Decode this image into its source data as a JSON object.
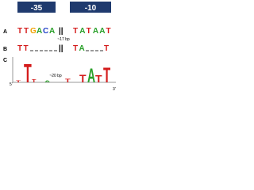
{
  "header": {
    "box1": "-35",
    "box2": "-10"
  },
  "rows": [
    {
      "label": "A",
      "left": [
        "T",
        "T",
        "G",
        "A",
        "C",
        "A"
      ],
      "right": [
        "T",
        "A",
        "T",
        "A",
        "A",
        "T"
      ]
    },
    {
      "label": "B",
      "left": [
        "T",
        "T"
      ],
      "right": [
        "T",
        "A"
      ],
      "end": [
        "T"
      ]
    }
  ],
  "spacer_a": "~17 bp",
  "spacer_c": "~20 bp",
  "panel_c": {
    "label": "C",
    "five": "5'",
    "three": "3'",
    "letters": [
      "T",
      "T",
      "T",
      "A",
      "T",
      "T",
      "A",
      "T",
      "T"
    ]
  }
}
